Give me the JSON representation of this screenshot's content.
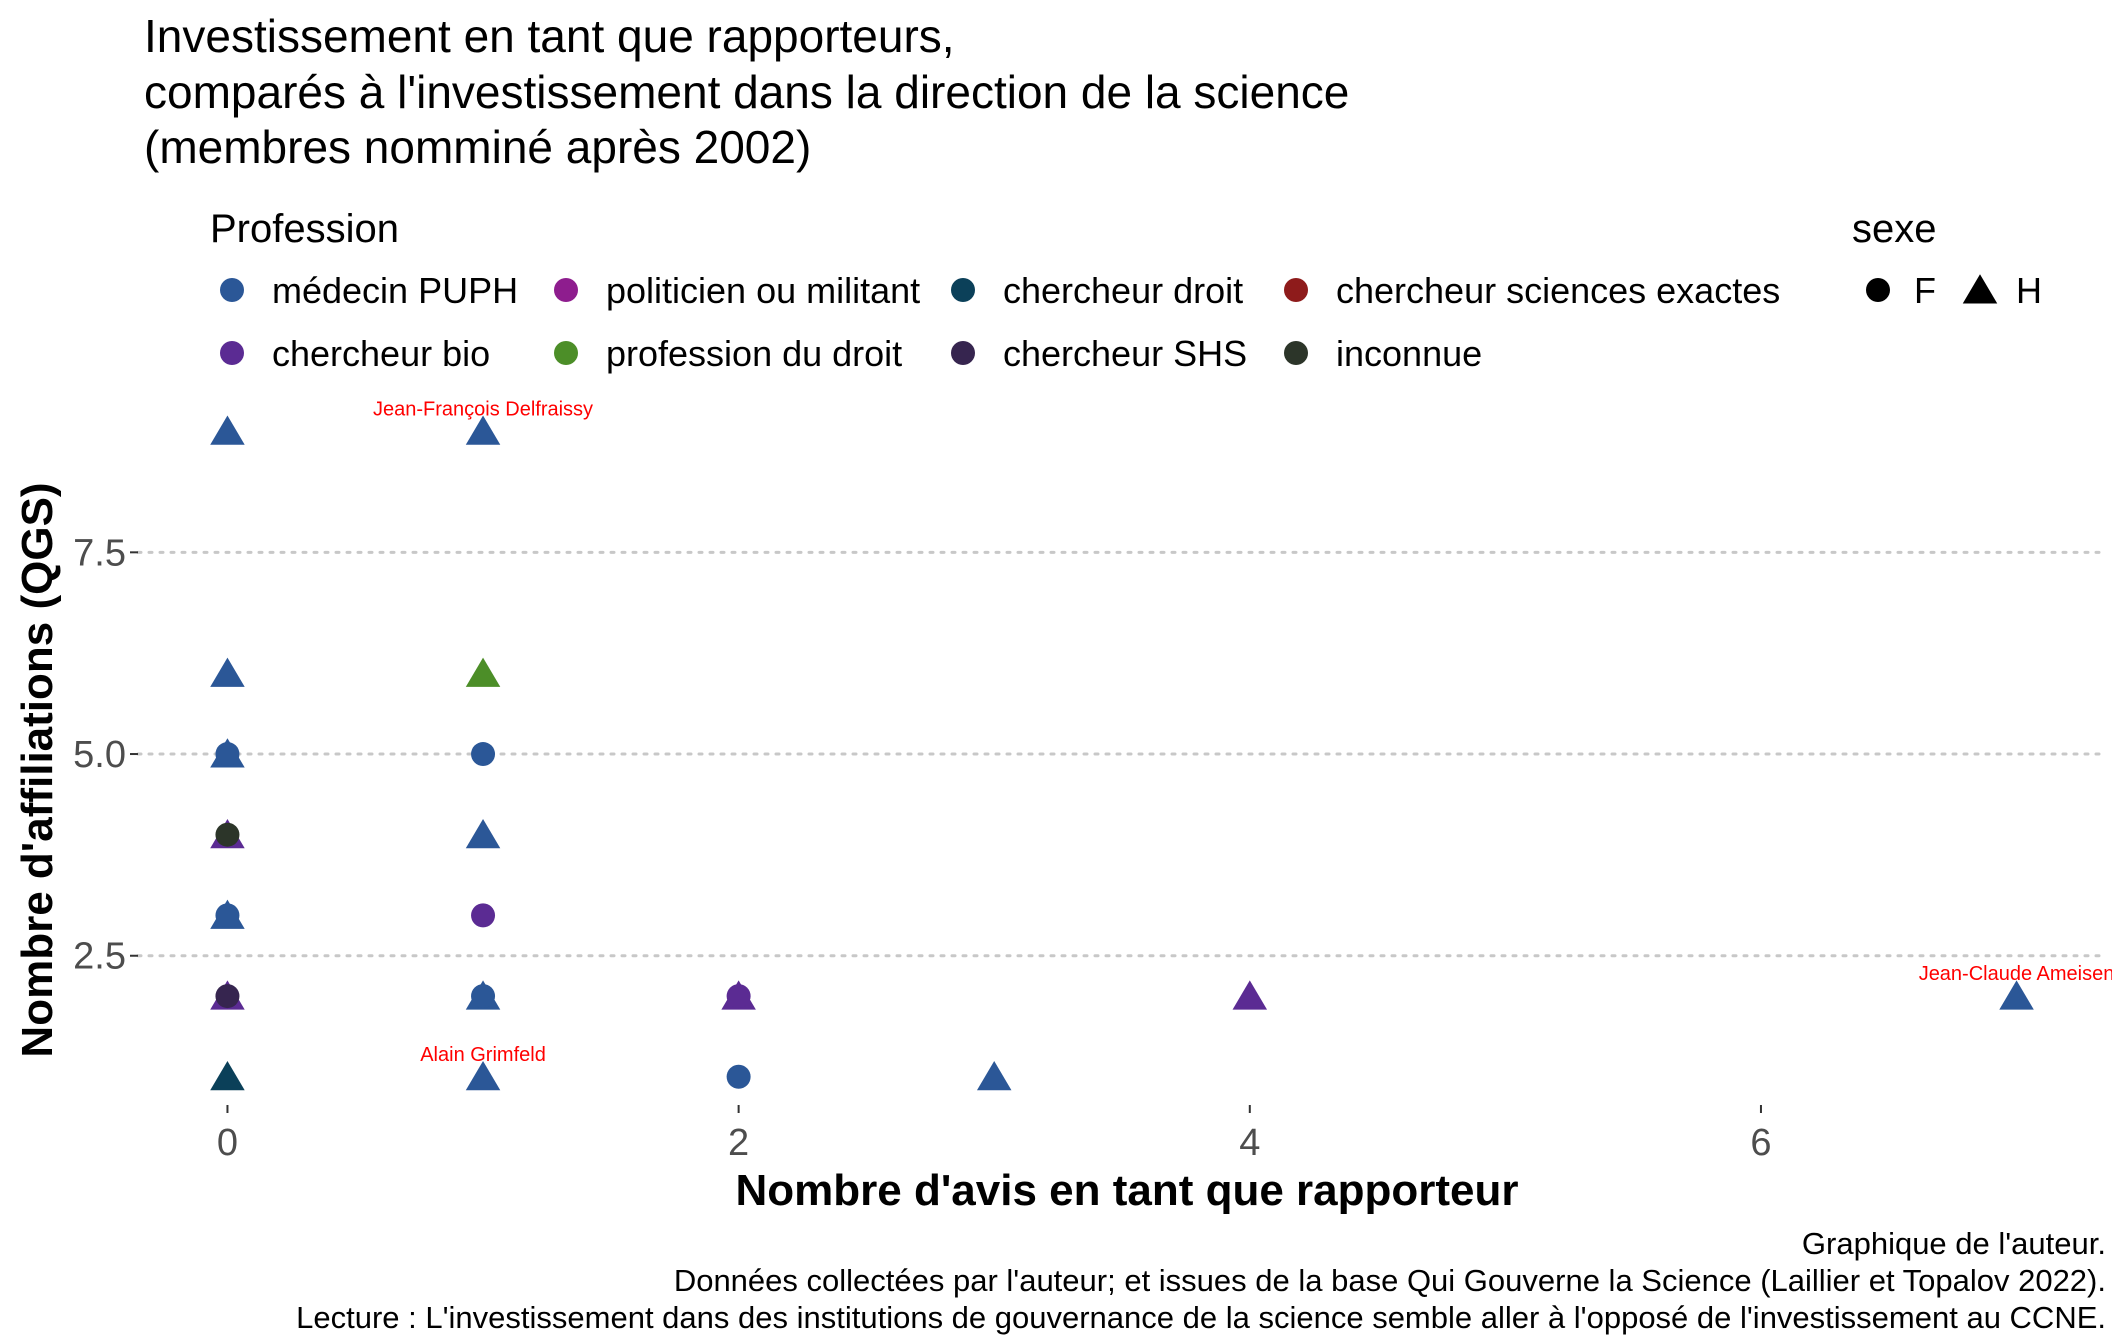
{
  "chart_data": {
    "type": "scatter",
    "title_lines": [
      "Investissement en tant que rapporteurs,",
      "comparés à l'investissement dans la direction de la science",
      "(membres nomminé après 2002)"
    ],
    "xlabel": "Nombre d'avis en tant que rapporteur",
    "ylabel": "Nombre d'affiliations (QGS)",
    "xlim": [
      -0.35,
      7.35
    ],
    "ylim": [
      0.65,
      9.45
    ],
    "x_ticks": [
      0,
      2,
      4,
      6
    ],
    "x_tick_labels": [
      "0",
      "2",
      "4",
      "6"
    ],
    "y_ticks": [
      2.5,
      5.0,
      7.5
    ],
    "y_tick_labels": [
      "2.5",
      "5.0",
      "7.5"
    ],
    "grid": "horizontal dotted at y ticks",
    "legend_placement": "top",
    "legend": {
      "profession_title": "Profession",
      "profession": [
        {
          "key": "medecin",
          "label": "médecin PUPH",
          "color": "#2B5797"
        },
        {
          "key": "politicien",
          "label": "politicien ou militant",
          "color": "#8E1D8E"
        },
        {
          "key": "chdroit",
          "label": "chercheur droit",
          "color": "#0B4059"
        },
        {
          "key": "chexactes",
          "label": "chercheur sciences exactes",
          "color": "#8E1B1B"
        },
        {
          "key": "chbio",
          "label": "chercheur bio",
          "color": "#5B2B93"
        },
        {
          "key": "profdroit",
          "label": "profession du droit",
          "color": "#4C8E28"
        },
        {
          "key": "chshs",
          "label": "chercheur SHS",
          "color": "#36254F"
        },
        {
          "key": "inconnue",
          "label": "inconnue",
          "color": "#2C3529"
        }
      ],
      "sexe_title": "sexe",
      "sexe": [
        {
          "key": "F",
          "label": "F",
          "shape": "circle"
        },
        {
          "key": "H",
          "label": "H",
          "shape": "triangle"
        }
      ]
    },
    "points": [
      {
        "x": 0,
        "y": 9,
        "profession": "medecin",
        "sexe": "H"
      },
      {
        "x": 0,
        "y": 6,
        "profession": "medecin",
        "sexe": "H"
      },
      {
        "x": 0,
        "y": 5,
        "profession": "medecin",
        "sexe": "H"
      },
      {
        "x": 0,
        "y": 5,
        "profession": "medecin",
        "sexe": "F"
      },
      {
        "x": 0,
        "y": 4,
        "profession": "chbio",
        "sexe": "H"
      },
      {
        "x": 0,
        "y": 4,
        "profession": "inconnue",
        "sexe": "F"
      },
      {
        "x": 0,
        "y": 3,
        "profession": "medecin",
        "sexe": "H"
      },
      {
        "x": 0,
        "y": 3,
        "profession": "medecin",
        "sexe": "F"
      },
      {
        "x": 0,
        "y": 2,
        "profession": "chbio",
        "sexe": "H"
      },
      {
        "x": 0,
        "y": 2,
        "profession": "chshs",
        "sexe": "F"
      },
      {
        "x": 0,
        "y": 1,
        "profession": "chdroit",
        "sexe": "H"
      },
      {
        "x": 1,
        "y": 9,
        "profession": "medecin",
        "sexe": "H"
      },
      {
        "x": 1,
        "y": 6,
        "profession": "profdroit",
        "sexe": "H"
      },
      {
        "x": 1,
        "y": 5,
        "profession": "medecin",
        "sexe": "F"
      },
      {
        "x": 1,
        "y": 4,
        "profession": "medecin",
        "sexe": "H"
      },
      {
        "x": 1,
        "y": 3,
        "profession": "chbio",
        "sexe": "F"
      },
      {
        "x": 1,
        "y": 2,
        "profession": "medecin",
        "sexe": "H"
      },
      {
        "x": 1,
        "y": 2,
        "profession": "medecin",
        "sexe": "F"
      },
      {
        "x": 1,
        "y": 1,
        "profession": "medecin",
        "sexe": "H"
      },
      {
        "x": 2,
        "y": 2,
        "profession": "chbio",
        "sexe": "H"
      },
      {
        "x": 2,
        "y": 2,
        "profession": "chbio",
        "sexe": "F"
      },
      {
        "x": 2,
        "y": 1,
        "profession": "medecin",
        "sexe": "F"
      },
      {
        "x": 3,
        "y": 1,
        "profession": "medecin",
        "sexe": "H"
      },
      {
        "x": 4,
        "y": 2,
        "profession": "chbio",
        "sexe": "H"
      },
      {
        "x": 7,
        "y": 2,
        "profession": "medecin",
        "sexe": "H"
      }
    ],
    "annotations": [
      {
        "x": 1,
        "y": 9,
        "text": "Jean-François Delfraissy"
      },
      {
        "x": 1,
        "y": 1,
        "text": "Alain Grimfeld"
      },
      {
        "x": 7,
        "y": 2,
        "text": "Jean-Claude Ameisen"
      }
    ],
    "caption_lines": [
      "Graphique de l'auteur.",
      "Données collectées par l'auteur; et issues de la base Qui Gouverne la Science (Laillier et Topalov 2022).",
      "Lecture : L'investissement dans des institutions de gouvernance de la science semble aller à l'opposé de l'investissement au CCNE."
    ]
  }
}
